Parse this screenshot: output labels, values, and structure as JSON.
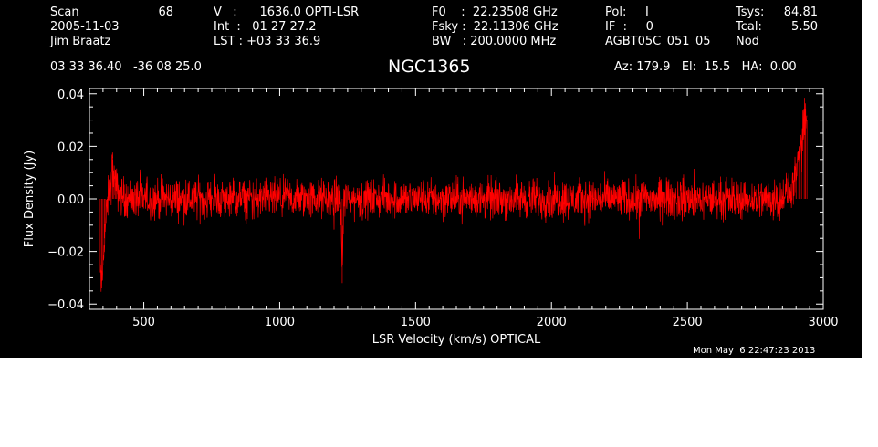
{
  "header": {
    "scan_label": "Scan",
    "scan_number": "68",
    "date": "2005-11-03",
    "observer": "Jim Braatz",
    "velocity": "V   :      1636.0 OPTI-LSR",
    "int_time": "Int  :   01 27 27.2",
    "lst": "LST : +03 33 36.9",
    "f0": "F0    :  22.23508 GHz",
    "fsky": "Fsky :  22.11306 GHz",
    "bw": "BW   : 200.0000 MHz",
    "pol": "Pol:     I",
    "if_num": "IF  :     0",
    "project": "AGBT05C_051_05",
    "tsys_label": "Tsys:",
    "tsys_value": "84.81",
    "tcal_label": "Tcal:",
    "tcal_value": "5.50",
    "procedure": "Nod",
    "coords": "03 33 36.40   -36 08 25.0",
    "source": "NGC1365",
    "pointing": "Az: 179.9   El:  15.5   HA:  0.00",
    "timestamp": "Mon May  6 22:47:23 2013"
  },
  "chart_data": {
    "type": "line",
    "title": "NGC1365",
    "xlabel": "LSR Velocity (km/s) OPTICAL",
    "ylabel": "Flux Density (Jy)",
    "xlim": [
      300,
      3000
    ],
    "ylim": [
      -0.042,
      0.042
    ],
    "x_ticks": [
      500,
      1000,
      1500,
      2000,
      2500,
      3000
    ],
    "x_tick_labels": [
      "500",
      "1000",
      "1500",
      "2000",
      "2500",
      "3000"
    ],
    "y_ticks": [
      -0.04,
      -0.02,
      0.0,
      0.02,
      0.04
    ],
    "y_tick_labels": [
      "−0.04",
      "−0.02",
      "0.00",
      "0.02",
      "0.04"
    ],
    "grid": false,
    "line_color": "#ff0000",
    "axis_color": "#ffffff",
    "background": "#000000",
    "series": [
      {
        "x": [
          340,
          345,
          350,
          355,
          360,
          365,
          370,
          375,
          380,
          385,
          390,
          395,
          400,
          410,
          420,
          450,
          500,
          600,
          700,
          800,
          900,
          1000,
          1100,
          1200,
          1225,
          1230,
          1235,
          1300,
          1400,
          1500,
          1600,
          1700,
          1800,
          1900,
          2000,
          2100,
          2200,
          2300,
          2400,
          2500,
          2600,
          2700,
          2800,
          2850,
          2880,
          2900,
          2910,
          2920,
          2930,
          2935,
          2940
        ],
        "y": [
          -0.028,
          -0.034,
          -0.025,
          -0.015,
          -0.008,
          -0.005,
          0.002,
          0.005,
          0.006,
          0.015,
          0.008,
          0.006,
          0.004,
          0.002,
          0.001,
          0.0,
          0.0,
          0.0,
          0.0,
          0.0,
          0.0,
          0.0,
          0.0,
          0.0,
          0.0,
          -0.032,
          0.0,
          0.0,
          0.0,
          0.0,
          0.0,
          0.0,
          0.0,
          0.0,
          0.0,
          0.0,
          0.0,
          0.0,
          0.0,
          0.0,
          0.0,
          0.0,
          0.0,
          0.001,
          0.003,
          0.008,
          0.015,
          0.022,
          0.028,
          0.034,
          0.03
        ]
      }
    ]
  }
}
